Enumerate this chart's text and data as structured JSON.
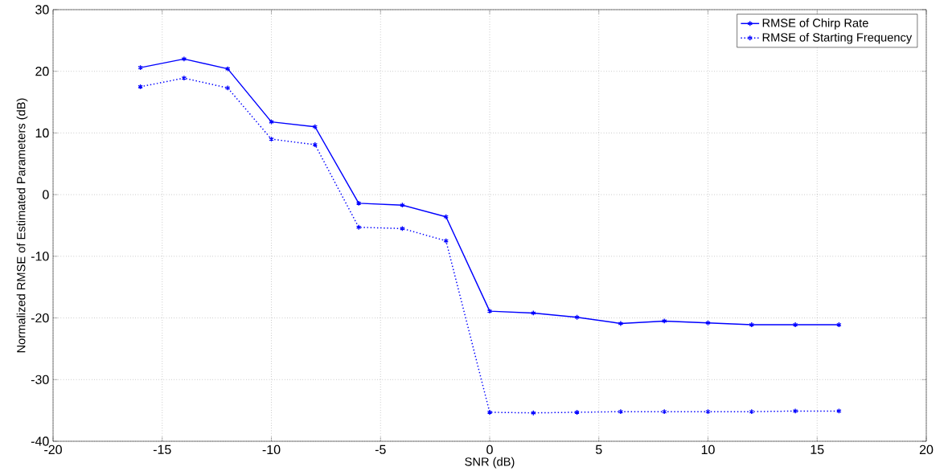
{
  "chart_data": {
    "type": "line",
    "xlabel": "SNR (dB)",
    "ylabel": "Normalized RMSE of Estimated Parameters (dB)",
    "x": [
      -16,
      -14,
      -12,
      -10,
      -8,
      -6,
      -4,
      -2,
      0,
      2,
      4,
      6,
      8,
      10,
      12,
      14,
      16
    ],
    "series": [
      {
        "name": "RMSE of Chirp Rate",
        "color": "#0000ff",
        "line_style": "solid",
        "values": [
          20.6,
          22,
          20.4,
          11.8,
          11,
          -1.4,
          -1.7,
          -3.6,
          -18.9,
          -19.2,
          -19.9,
          -20.9,
          -20.5,
          -20.8,
          -21.1,
          -21.1,
          -21.1
        ]
      },
      {
        "name": "RMSE of  Starting Frequency",
        "color": "#0000ff",
        "line_style": "dotted",
        "values": [
          17.5,
          18.9,
          17.3,
          9,
          8.1,
          -5.3,
          -5.5,
          -7.5,
          -35.3,
          -35.4,
          -35.3,
          -35.2,
          -35.2,
          -35.2,
          -35.2,
          -35.1,
          -35.1
        ]
      }
    ],
    "marker": "cross",
    "grid": true,
    "legend": "top right",
    "xlim": [
      -20,
      20
    ],
    "ylim": [
      -40,
      30
    ],
    "xticks": [
      -20,
      -15,
      -10,
      -5,
      0,
      5,
      10,
      15,
      20
    ],
    "yticks": [
      -40,
      -30,
      -20,
      -10,
      0,
      10,
      20,
      30
    ]
  }
}
